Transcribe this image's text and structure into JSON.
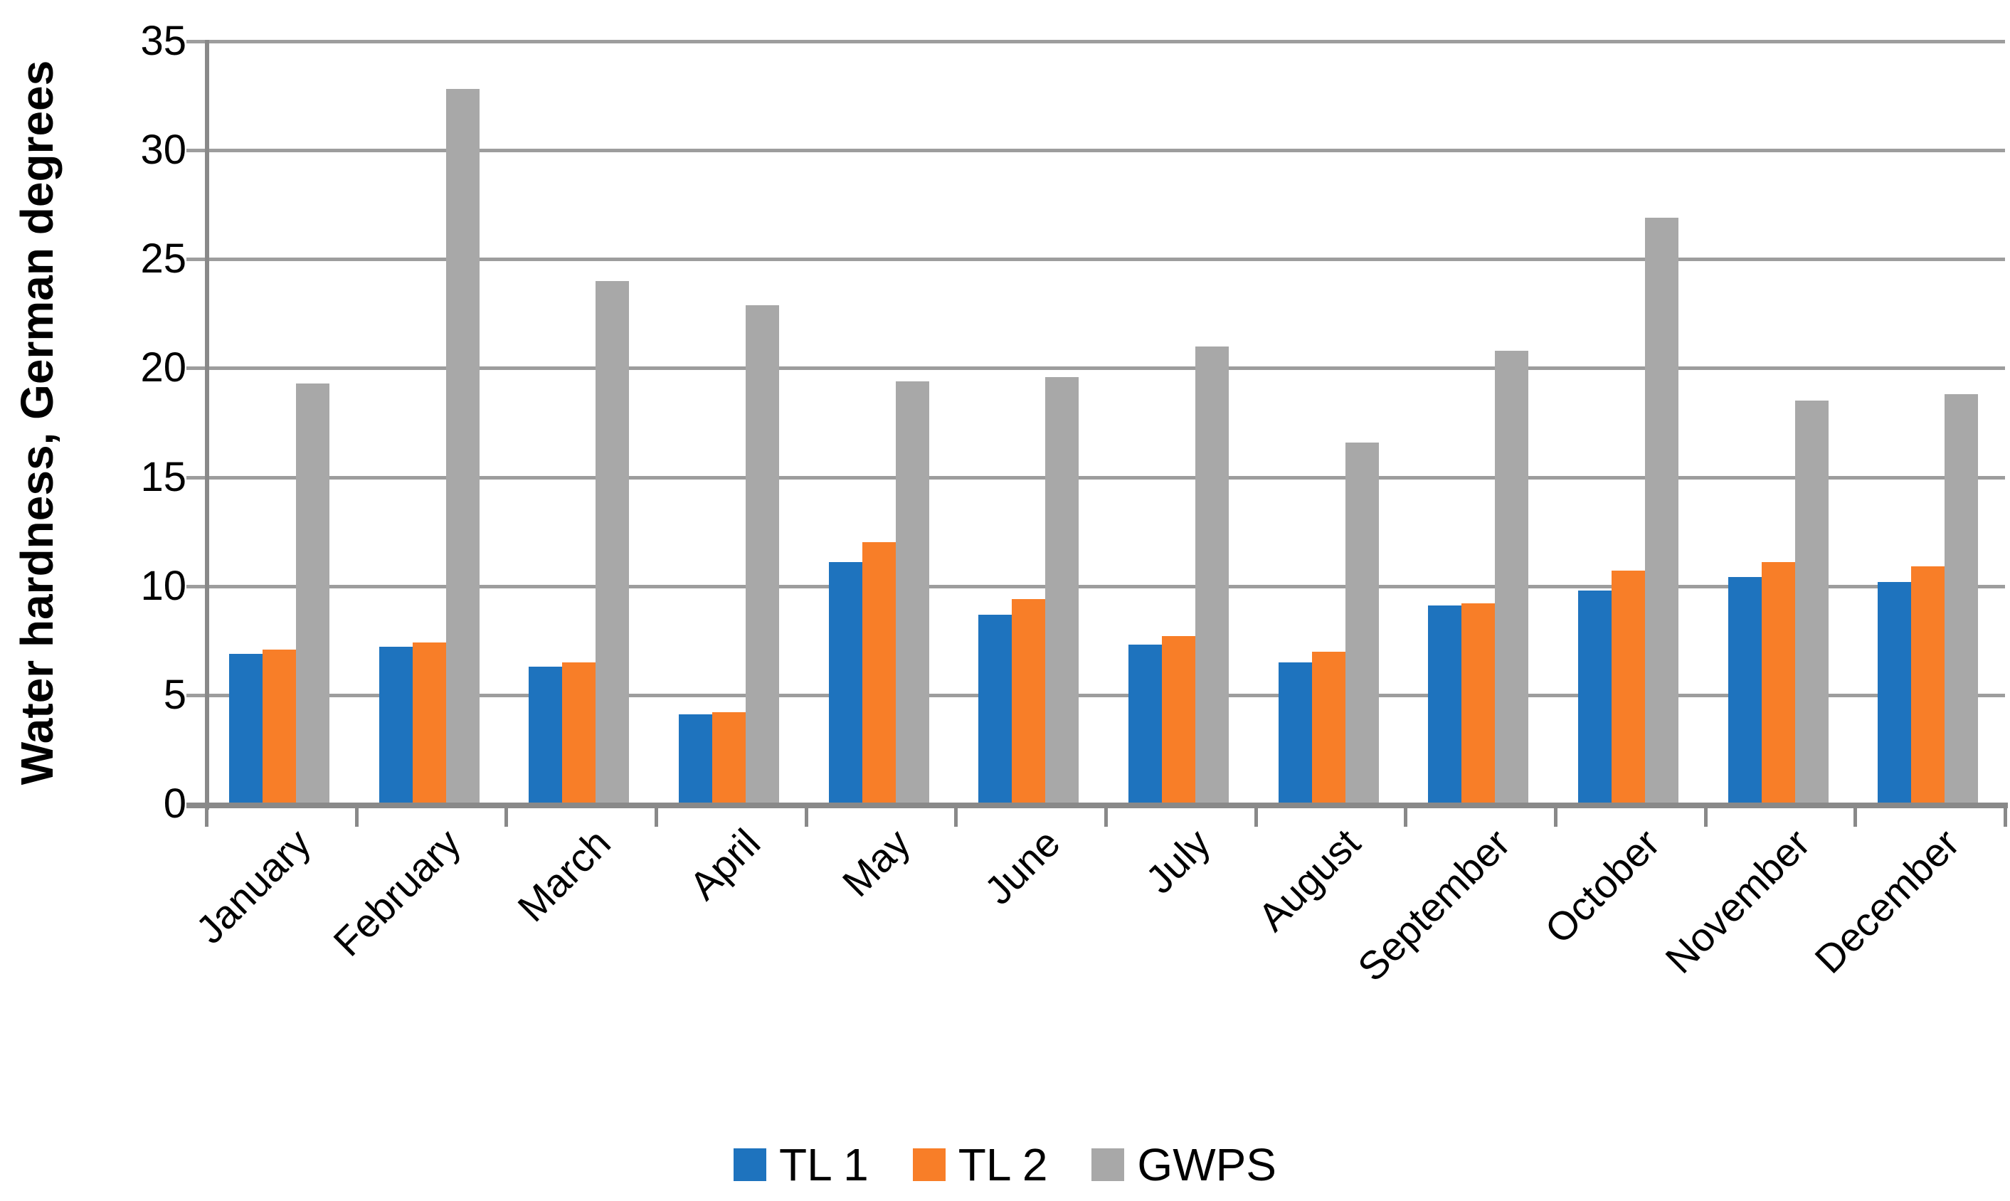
{
  "chart_data": {
    "type": "bar",
    "title": "",
    "ylabel": "Water hardness, German degrees",
    "xlabel": "",
    "ylim": [
      0,
      35
    ],
    "yticks": [
      0,
      5,
      10,
      15,
      20,
      25,
      30,
      35
    ],
    "grid": true,
    "legend_position": "bottom",
    "categories": [
      "January",
      "February",
      "March",
      "April",
      "May",
      "June",
      "July",
      "August",
      "September",
      "October",
      "November",
      "December"
    ],
    "series": [
      {
        "name": "TL 1",
        "color": "#1E73BE",
        "values": [
          6.9,
          7.2,
          6.3,
          4.1,
          11.1,
          8.7,
          7.3,
          6.5,
          9.1,
          9.8,
          10.4,
          10.2
        ]
      },
      {
        "name": "TL 2",
        "color": "#F87E28",
        "values": [
          7.1,
          7.4,
          6.5,
          4.2,
          12.0,
          9.4,
          7.7,
          7.0,
          9.2,
          10.7,
          11.1,
          10.9
        ]
      },
      {
        "name": "GWPS",
        "color": "#A8A8A8",
        "values": [
          19.3,
          32.8,
          24.0,
          22.9,
          19.4,
          19.6,
          21.0,
          16.6,
          20.8,
          26.9,
          18.5,
          18.8
        ]
      }
    ],
    "axis_color": "#898989",
    "gridline_color": "#9D9D9D",
    "text_color": "#000000"
  }
}
